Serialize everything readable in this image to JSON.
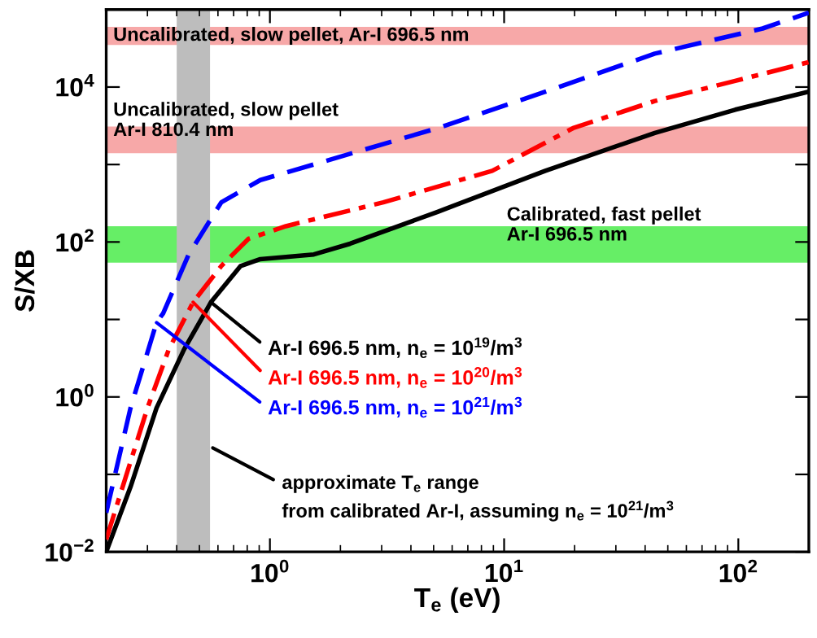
{
  "chart_data": {
    "type": "line",
    "xlabel": "T$_{e}$ (eV)",
    "ylabel": "S/XB",
    "log": "xy",
    "xlim": [
      0.2,
      200
    ],
    "ylim": [
      0.01,
      100000
    ],
    "xticks": [
      {
        "value": 1,
        "label": "10$^{0}$"
      },
      {
        "value": 10,
        "label": "10$^{1}$"
      },
      {
        "value": 100,
        "label": "10$^{2}$"
      }
    ],
    "yticks": [
      {
        "value": 0.01,
        "label": "10$^{−2}$"
      },
      {
        "value": 0.1,
        "label": null
      },
      {
        "value": 1,
        "label": "10$^{0}$"
      },
      {
        "value": 10,
        "label": null
      },
      {
        "value": 100,
        "label": "10$^{2}$"
      },
      {
        "value": 1000,
        "label": null
      },
      {
        "value": 10000,
        "label": "10$^{4}$"
      },
      {
        "value": 100000,
        "label": null
      }
    ],
    "grid": false,
    "legend": false,
    "series": [
      {
        "name": "Ar-I 696.5 nm, n$_{e}$ = 10$^{19}$/m$^{3}$",
        "color": "#000000",
        "line_style": "solid",
        "x": [
          0.2,
          0.254,
          0.328,
          0.43,
          0.56,
          0.75,
          0.91,
          1.54,
          2.2,
          5.2,
          15,
          44,
          97,
          200
        ],
        "values": [
          0.01,
          0.069,
          0.72,
          4.1,
          16.7,
          49,
          60,
          69,
          95,
          245,
          830,
          2560,
          5100,
          8700
        ]
      },
      {
        "name": "Ar-I 696.5 nm, n$_{e}$ = 10$^{20}$/m$^{3}$",
        "color": "#ff0000",
        "line_style": "dashdot",
        "x": [
          0.2,
          0.235,
          0.3,
          0.37,
          0.47,
          0.62,
          0.81,
          1.17,
          3.05,
          8.9,
          19.7,
          44,
          97,
          200
        ],
        "values": [
          0.0145,
          0.069,
          0.72,
          4.1,
          16.7,
          49,
          110,
          160,
          325,
          830,
          2950,
          6600,
          12000,
          21000
        ]
      },
      {
        "name": "Ar-I 696.5 nm, n$_{e}$ = 10$^{21}$/m$^{3}$",
        "color": "#0000ff",
        "line_style": "dashed",
        "x": [
          0.2,
          0.254,
          0.328,
          0.35,
          0.45,
          0.62,
          0.91,
          1.8,
          5.2,
          15,
          44,
          127,
          200
        ],
        "values": [
          0.032,
          0.72,
          9.1,
          12,
          69,
          325,
          630,
          1150,
          2950,
          8700,
          27000,
          57000,
          91000
        ]
      }
    ],
    "bands": [
      {
        "axis": "y",
        "from": 35000,
        "to": 60000,
        "label": "Uncalibrated, slow pellet, Ar-I 696.5 nm",
        "color": "#f7a8a8"
      },
      {
        "axis": "y",
        "from": 1400,
        "to": 3100,
        "label": "Uncalibrated, slow pellet\nAr-I 810.4 nm",
        "color": "#f7a8a8"
      },
      {
        "axis": "y",
        "from": 54,
        "to": 160,
        "label": "Calibrated, fast pellet\nAr-I 696.5 nm",
        "color": "#66ee66"
      },
      {
        "axis": "x",
        "from": 0.4,
        "to": 0.555,
        "color": "#bdbdbd"
      }
    ],
    "annotations": [
      {
        "text": "approximate T$_{e}$ range",
        "x": 0.57,
        "y": 0.22
      },
      "from calibrated Ar-I, assuming n$_{e}$ = 10$^{21}$/m$^{3}$"
    ]
  }
}
